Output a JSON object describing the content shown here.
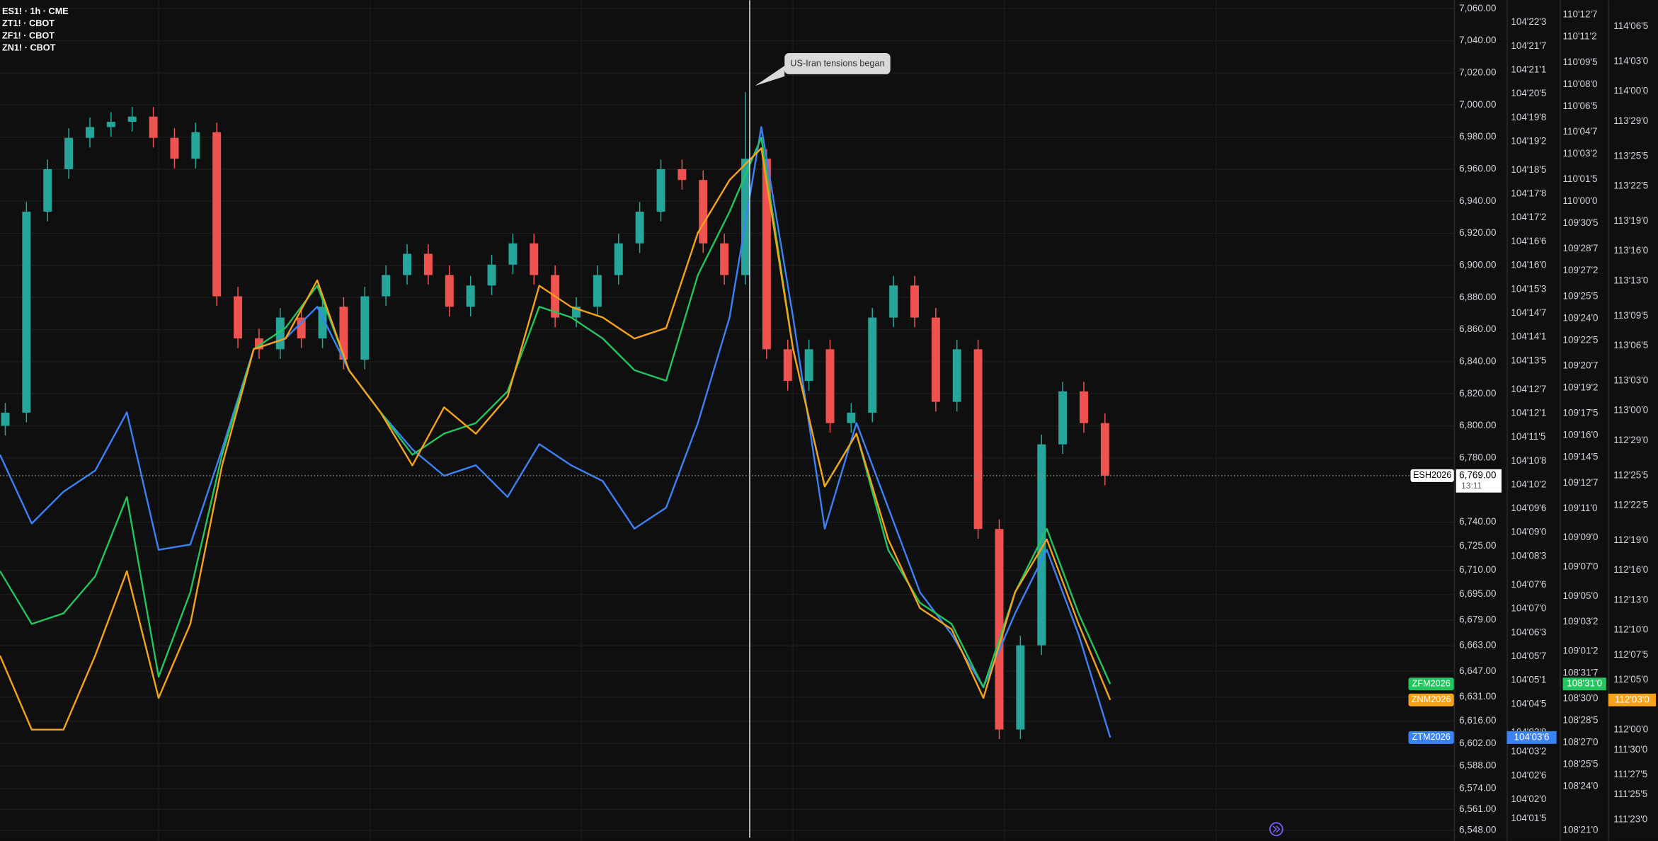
{
  "chart_data": {
    "type": "candlestick",
    "annotation": "US-Iran tensions began",
    "grid": true,
    "candles": {
      "name": "ESH2026",
      "legend": "ES1! · 1h · CME",
      "up_color": "#26a69a",
      "down_color": "#ef5350",
      "last_label": "6,769.00",
      "countdown": "13:11",
      "open": [
        6800,
        6808.25,
        6933.5,
        6960,
        6979.5,
        6986.25,
        6989.5,
        6992.75,
        6979.5,
        6966.5,
        6983,
        6880.75,
        6854.5,
        6847.75,
        6867.5,
        6854.5,
        6874.25,
        6841.25,
        6880.75,
        6894,
        6907.25,
        6894,
        6874.25,
        6887.5,
        6900.5,
        6913.75,
        6894,
        6867.5,
        6874.25,
        6894,
        6913.75,
        6933.5,
        6960,
        6953.25,
        6913.75,
        6894,
        6966.5,
        6847.75,
        6828,
        6847.75,
        6801.75,
        6808.25,
        6867.5,
        6887.5,
        6867.5,
        6815,
        6847.75,
        6735.75,
        6610.75,
        6663.25,
        6788.5,
        6821.5,
        6801.75
      ],
      "high": [
        6814.25,
        6939.5,
        6966,
        6985.5,
        6992.25,
        6995.5,
        6998.75,
        6998.75,
        6985.5,
        6989,
        6989,
        6886.75,
        6860.5,
        6873.5,
        6873.5,
        6880.25,
        6880.25,
        6886.75,
        6900,
        6913.25,
        6913.25,
        6900,
        6893.5,
        6906.5,
        6919.75,
        6919.75,
        6900,
        6880.25,
        6900,
        6919.75,
        6939.5,
        6966,
        6966,
        6959.25,
        6919.75,
        7008,
        6972.5,
        6853.75,
        6853.75,
        6853.75,
        6814.25,
        6873.5,
        6893.5,
        6893.5,
        6873.5,
        6853.75,
        6853.75,
        6741.75,
        6669.25,
        6794.5,
        6827.5,
        6827.5,
        6807.75
      ],
      "low": [
        6794,
        6802.25,
        6927.5,
        6954,
        6973.5,
        6980.25,
        6983.5,
        6973.5,
        6960.5,
        6960.5,
        6874.75,
        6848.5,
        6841.75,
        6841.75,
        6848.5,
        6848.5,
        6835.25,
        6835.25,
        6874.75,
        6888,
        6888,
        6868.25,
        6868.25,
        6881.5,
        6894.5,
        6888,
        6861.5,
        6861.5,
        6868.25,
        6888,
        6907.75,
        6927.5,
        6947.25,
        6907.75,
        6888,
        6888,
        6841.75,
        6822,
        6822,
        6795.75,
        6795.75,
        6802.25,
        6861.5,
        6861.5,
        6809,
        6809,
        6729.75,
        6604.75,
        6604.75,
        6657.25,
        6782.5,
        6795.75,
        6763
      ],
      "close": [
        6808.25,
        6933.5,
        6960,
        6979.5,
        6986.25,
        6989.5,
        6992.75,
        6979.5,
        6966.5,
        6983,
        6880.75,
        6854.5,
        6847.75,
        6867.5,
        6854.5,
        6874.25,
        6841.25,
        6880.75,
        6894,
        6907.25,
        6894,
        6874.25,
        6887.5,
        6900.5,
        6913.75,
        6894,
        6867.5,
        6874.25,
        6894,
        6913.75,
        6933.5,
        6960,
        6953.25,
        6913.75,
        6894,
        6966.5,
        6847.75,
        6828,
        6847.75,
        6801.75,
        6808.25,
        6867.5,
        6887.5,
        6867.5,
        6815,
        6847.75,
        6735.75,
        6610.75,
        6663.25,
        6788.5,
        6821.5,
        6801.75,
        6769
      ]
    },
    "series": [
      {
        "name": "ZTM2026",
        "legend": "ZT1! · CBOT",
        "color": "#3b82f6",
        "axis": "y2",
        "last_label": "104'03'6",
        "values": [
          104.345,
          104.2887,
          104.3147,
          104.332,
          104.3797,
          104.2671,
          104.2714,
          104.3494,
          104.4316,
          104.4403,
          104.4663,
          104.4143,
          104.3797,
          104.3494,
          104.3277,
          104.3364,
          104.3104,
          104.3537,
          104.3364,
          104.3234,
          104.2844,
          104.3017,
          104.371,
          104.4576,
          104.6135,
          104.4576,
          104.2844,
          104.371,
          104.3017,
          104.2324,
          104.1978,
          104.1545,
          104.2151,
          104.2671,
          104.1978,
          104.1133
        ]
      },
      {
        "name": "ZFM2026",
        "legend": "ZF1! · CBOT",
        "color": "#22c55e",
        "axis": "y3",
        "last_label": "108'31'0",
        "values": [
          109.2101,
          109.0972,
          109.1198,
          109.1988,
          109.3683,
          108.9842,
          109.165,
          109.4586,
          109.6845,
          109.7297,
          109.8201,
          109.6393,
          109.549,
          109.4586,
          109.5038,
          109.5264,
          109.5942,
          109.7749,
          109.7523,
          109.7071,
          109.6393,
          109.6168,
          109.8427,
          109.9782,
          110.1363,
          109.6845,
          109.3909,
          109.5038,
          109.2553,
          109.1424,
          109.0972,
          108.9616,
          109.165,
          109.3005,
          109.1198,
          108.9688
        ]
      },
      {
        "name": "ZNM2026",
        "legend": "ZN1! · CBOT",
        "color": "#f7a21b",
        "axis": "y4",
        "last_label": "112'03'0",
        "values": [
          112.2325,
          112.0006,
          112.0006,
          112.2325,
          112.4974,
          112.1,
          112.3318,
          112.8286,
          113.1929,
          113.2261,
          113.4082,
          113.1267,
          112.9942,
          112.8286,
          113.0108,
          112.928,
          113.0439,
          113.3917,
          113.3254,
          113.2923,
          113.2261,
          113.2592,
          113.5573,
          113.7229,
          113.8222,
          113.1929,
          112.7624,
          112.928,
          112.5968,
          112.3815,
          112.3153,
          112.1,
          112.4312,
          112.5968,
          112.3318,
          112.0938
        ]
      }
    ],
    "ylim": [
      6541.4,
      7065.3
    ],
    "yticks": [
      {
        "value": 7060,
        "label": "7,060.00"
      },
      {
        "value": 7040,
        "label": "7,040.00"
      },
      {
        "value": 7020,
        "label": "7,020.00"
      },
      {
        "value": 7000,
        "label": "7,000.00"
      },
      {
        "value": 6980,
        "label": "6,980.00"
      },
      {
        "value": 6960,
        "label": "6,960.00"
      },
      {
        "value": 6940,
        "label": "6,940.00"
      },
      {
        "value": 6920,
        "label": "6,920.00"
      },
      {
        "value": 6900,
        "label": "6,900.00"
      },
      {
        "value": 6880,
        "label": "6,880.00"
      },
      {
        "value": 6860,
        "label": "6,860.00"
      },
      {
        "value": 6840,
        "label": "6,840.00"
      },
      {
        "value": 6820,
        "label": "6,820.00"
      },
      {
        "value": 6800,
        "label": "6,800.00"
      },
      {
        "value": 6780,
        "label": "6,780.00"
      },
      {
        "value": 6740,
        "label": "6,740.00"
      },
      {
        "value": 6725,
        "label": "6,725.00"
      },
      {
        "value": 6710,
        "label": "6,710.00"
      },
      {
        "value": 6695,
        "label": "6,695.00"
      },
      {
        "value": 6679,
        "label": "6,679.00"
      },
      {
        "value": 6663,
        "label": "6,663.00"
      },
      {
        "value": 6647,
        "label": "6,647.00"
      },
      {
        "value": 6631,
        "label": "6,631.00"
      },
      {
        "value": 6616,
        "label": "6,616.00"
      },
      {
        "value": 6602,
        "label": "6,602.00"
      },
      {
        "value": 6588,
        "label": "6,588.00"
      },
      {
        "value": 6574,
        "label": "6,574.00"
      },
      {
        "value": 6561,
        "label": "6,561.00"
      },
      {
        "value": 6548,
        "label": "6,548.00"
      }
    ],
    "y2lim": [
      104.0287,
      104.7174
    ],
    "y2ticks": [
      {
        "value": 104.6992,
        "label": "104'22'3"
      },
      {
        "value": 104.6797,
        "label": "104'21'7"
      },
      {
        "value": 104.6602,
        "label": "104'21'1"
      },
      {
        "value": 104.6406,
        "label": "104'20'5"
      },
      {
        "value": 104.6211,
        "label": "104'19'8"
      },
      {
        "value": 104.6016,
        "label": "104'19'2"
      },
      {
        "value": 104.5781,
        "label": "104'18'5"
      },
      {
        "value": 104.5586,
        "label": "104'17'8"
      },
      {
        "value": 104.5391,
        "label": "104'17'2"
      },
      {
        "value": 104.5195,
        "label": "104'16'6"
      },
      {
        "value": 104.5,
        "label": "104'16'0"
      },
      {
        "value": 104.4805,
        "label": "104'15'3"
      },
      {
        "value": 104.4609,
        "label": "104'14'7"
      },
      {
        "value": 104.4414,
        "label": "104'14'1"
      },
      {
        "value": 104.4219,
        "label": "104'13'5"
      },
      {
        "value": 104.3984,
        "label": "104'12'7"
      },
      {
        "value": 104.3789,
        "label": "104'12'1"
      },
      {
        "value": 104.3594,
        "label": "104'11'5"
      },
      {
        "value": 104.3398,
        "label": "104'10'8"
      },
      {
        "value": 104.3203,
        "label": "104'10'2"
      },
      {
        "value": 104.3008,
        "label": "104'09'6"
      },
      {
        "value": 104.2813,
        "label": "104'09'0"
      },
      {
        "value": 104.2617,
        "label": "104'08'3"
      },
      {
        "value": 104.2383,
        "label": "104'07'6"
      },
      {
        "value": 104.2188,
        "label": "104'07'0"
      },
      {
        "value": 104.1992,
        "label": "104'06'3"
      },
      {
        "value": 104.1797,
        "label": "104'05'7"
      },
      {
        "value": 104.1602,
        "label": "104'05'1"
      },
      {
        "value": 104.1406,
        "label": "104'04'5"
      },
      {
        "value": 104.1172,
        "label": "104'03'8"
      },
      {
        "value": 104.1016,
        "label": "104'03'2"
      },
      {
        "value": 104.082,
        "label": "104'02'6"
      },
      {
        "value": 104.0625,
        "label": "104'02'0"
      },
      {
        "value": 104.0469,
        "label": "104'01'5"
      }
    ],
    "y3lim": [
      108.6337,
      110.43
    ],
    "y3ticks": [
      {
        "value": 110.3984,
        "label": "110'12'7"
      },
      {
        "value": 110.3516,
        "label": "110'11'2"
      },
      {
        "value": 110.2969,
        "label": "110'09'5"
      },
      {
        "value": 110.25,
        "label": "110'08'0"
      },
      {
        "value": 110.2031,
        "label": "110'06'5"
      },
      {
        "value": 110.1484,
        "label": "110'04'7"
      },
      {
        "value": 110.1016,
        "label": "110'03'2"
      },
      {
        "value": 110.0469,
        "label": "110'01'5"
      },
      {
        "value": 110,
        "label": "110'00'0"
      },
      {
        "value": 109.9531,
        "label": "109'30'5"
      },
      {
        "value": 109.8984,
        "label": "109'28'7"
      },
      {
        "value": 109.8516,
        "label": "109'27'2"
      },
      {
        "value": 109.7969,
        "label": "109'25'5"
      },
      {
        "value": 109.75,
        "label": "109'24'0"
      },
      {
        "value": 109.7031,
        "label": "109'22'5"
      },
      {
        "value": 109.6484,
        "label": "109'20'7"
      },
      {
        "value": 109.6016,
        "label": "109'19'2"
      },
      {
        "value": 109.5469,
        "label": "109'17'5"
      },
      {
        "value": 109.5,
        "label": "109'16'0"
      },
      {
        "value": 109.4531,
        "label": "109'14'5"
      },
      {
        "value": 109.3984,
        "label": "109'12'7"
      },
      {
        "value": 109.3438,
        "label": "109'11'0"
      },
      {
        "value": 109.2813,
        "label": "109'09'0"
      },
      {
        "value": 109.2188,
        "label": "109'07'0"
      },
      {
        "value": 109.1563,
        "label": "109'05'0"
      },
      {
        "value": 109.1016,
        "label": "109'03'2"
      },
      {
        "value": 109.0391,
        "label": "109'01'2"
      },
      {
        "value": 108.9922,
        "label": "108'31'7"
      },
      {
        "value": 108.9375,
        "label": "108'30'0"
      },
      {
        "value": 108.8906,
        "label": "108'28'5"
      },
      {
        "value": 108.8438,
        "label": "108'27'0"
      },
      {
        "value": 108.7969,
        "label": "108'25'5"
      },
      {
        "value": 108.75,
        "label": "108'24'0"
      },
      {
        "value": 108.6563,
        "label": "108'21'0"
      }
    ],
    "y4lim": [
      111.6526,
      114.2859
    ],
    "y4ticks": [
      {
        "value": 114.2031,
        "label": "114'06'5"
      },
      {
        "value": 114.0938,
        "label": "114'03'0"
      },
      {
        "value": 114,
        "label": "114'00'0"
      },
      {
        "value": 113.9063,
        "label": "113'29'0"
      },
      {
        "value": 113.7969,
        "label": "113'25'5"
      },
      {
        "value": 113.7031,
        "label": "113'22'5"
      },
      {
        "value": 113.5938,
        "label": "113'19'0"
      },
      {
        "value": 113.5,
        "label": "113'16'0"
      },
      {
        "value": 113.4063,
        "label": "113'13'0"
      },
      {
        "value": 113.2969,
        "label": "113'09'5"
      },
      {
        "value": 113.2031,
        "label": "113'06'5"
      },
      {
        "value": 113.0938,
        "label": "113'03'0"
      },
      {
        "value": 113,
        "label": "113'00'0"
      },
      {
        "value": 112.9063,
        "label": "112'29'0"
      },
      {
        "value": 112.7969,
        "label": "112'25'5"
      },
      {
        "value": 112.7031,
        "label": "112'22'5"
      },
      {
        "value": 112.5938,
        "label": "112'19'0"
      },
      {
        "value": 112.5,
        "label": "112'16'0"
      },
      {
        "value": 112.4063,
        "label": "112'13'0"
      },
      {
        "value": 112.3125,
        "label": "112'10'0"
      },
      {
        "value": 112.2344,
        "label": "112'07'5"
      },
      {
        "value": 112.1563,
        "label": "112'05'0"
      },
      {
        "value": 112,
        "label": "112'00'0"
      },
      {
        "value": 111.9375,
        "label": "111'30'0"
      },
      {
        "value": 111.8594,
        "label": "111'27'5"
      },
      {
        "value": 111.7969,
        "label": "111'25'5"
      },
      {
        "value": 111.7188,
        "label": "111'23'0"
      }
    ]
  }
}
